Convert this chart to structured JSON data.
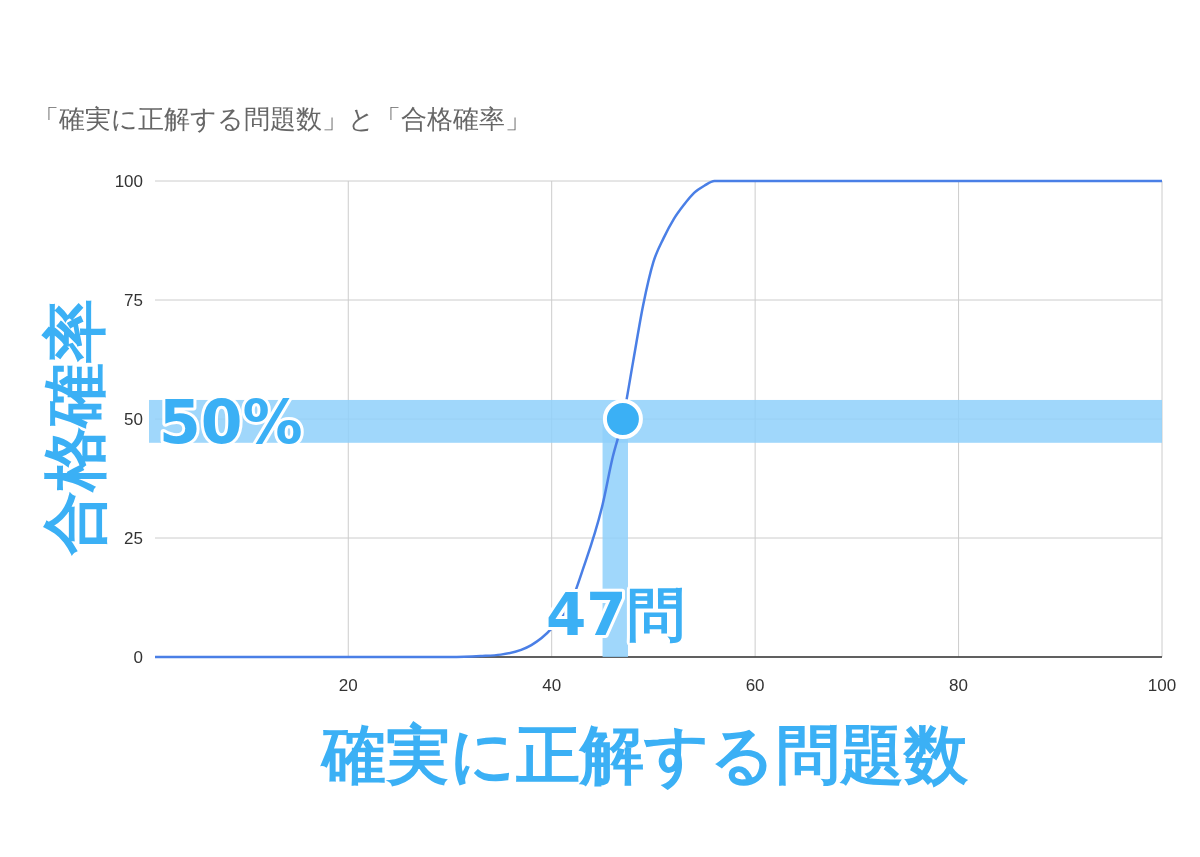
{
  "chart_data": {
    "type": "line",
    "title": "「確実に正解する問題数」と「合格確率」",
    "xlabel": "確実に正解する問題数",
    "ylabel": "合格確率",
    "xlim": [
      1,
      100
    ],
    "xticks": [
      20,
      40,
      60,
      80,
      100
    ],
    "ylim": [
      0,
      100
    ],
    "yticks": [
      0,
      25,
      50,
      75,
      100
    ],
    "grid": true,
    "bands": [
      {
        "axis": "y",
        "from": 45,
        "to": 54,
        "label": "50%",
        "color": "#8fd0fa"
      },
      {
        "axis": "x",
        "from": 45,
        "to": 47.5,
        "label": "47問",
        "color": "#8fd0fa"
      }
    ],
    "series": [
      {
        "color": "#4a7fe6",
        "marker": "none",
        "x": [
          1,
          10,
          20,
          30,
          33,
          35,
          37,
          38,
          40,
          42,
          43,
          45,
          46,
          47,
          48,
          49,
          50,
          51,
          52,
          53,
          54,
          55,
          56,
          60,
          80,
          100
        ],
        "values": [
          0,
          0,
          0,
          0,
          0.2,
          0.5,
          1.5,
          2.5,
          6,
          12,
          18,
          32,
          42,
          50,
          62,
          74,
          83,
          88,
          92,
          95,
          97.5,
          99,
          100,
          100,
          100,
          100
        ]
      },
      {
        "type": "scatter",
        "color": "#3bb0f5",
        "marker": "circle",
        "x": [
          47
        ],
        "values": [
          50
        ]
      }
    ]
  }
}
